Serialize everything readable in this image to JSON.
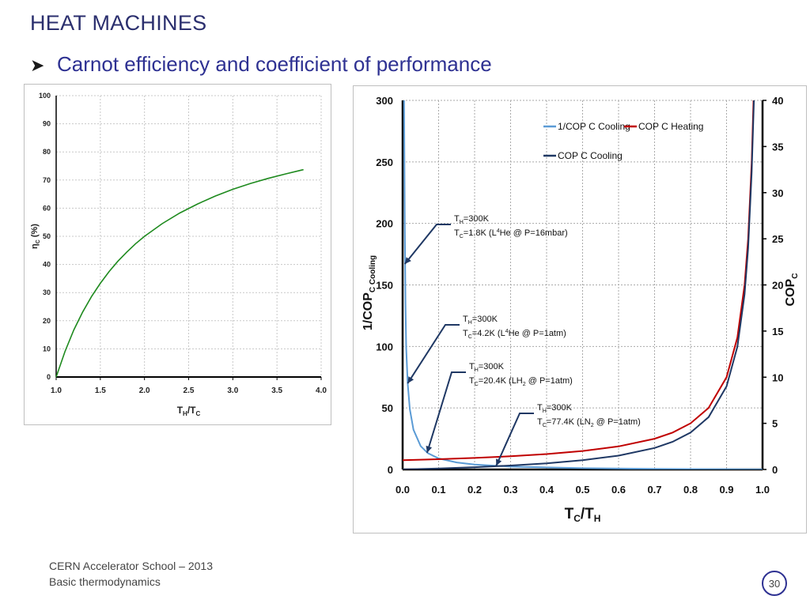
{
  "slide": {
    "title": "HEAT MACHINES",
    "bullet_icon": "arrowhead-bullet-icon",
    "subtitle": "Carnot efficiency and coefficient of performance"
  },
  "footer": {
    "line1": "CERN Accelerator School – 2013",
    "line2": "Basic thermodynamics",
    "page": "30"
  },
  "chart_data": [
    {
      "type": "line",
      "title": "",
      "xlabel_main": "T",
      "xlabel_sub1": "H",
      "xlabel_mid": "/T",
      "xlabel_sub2": "C",
      "ylabel_main": "η",
      "ylabel_sub": "C",
      "ylabel_unit": " (%)",
      "xlim": [
        1.0,
        4.0
      ],
      "ylim": [
        0,
        100
      ],
      "x_ticks": [
        "1.0",
        "1.5",
        "2.0",
        "2.5",
        "3.0",
        "3.5",
        "4.0"
      ],
      "y_ticks": [
        "0",
        "10",
        "20",
        "30",
        "40",
        "50",
        "60",
        "70",
        "80",
        "90",
        "100"
      ],
      "grid": true,
      "series": [
        {
          "name": "",
          "color": "#1e8a1e",
          "x": [
            1.0,
            1.1,
            1.2,
            1.3,
            1.4,
            1.5,
            1.6,
            1.7,
            1.8,
            1.9,
            2.0,
            2.2,
            2.4,
            2.6,
            2.8,
            3.0,
            3.2,
            3.4,
            3.6,
            3.8
          ],
          "y": [
            0,
            9.1,
            16.7,
            23.1,
            28.6,
            33.3,
            37.5,
            41.2,
            44.4,
            47.4,
            50.0,
            54.5,
            58.3,
            61.5,
            64.3,
            66.7,
            68.8,
            70.6,
            72.2,
            73.7
          ]
        }
      ]
    },
    {
      "type": "line",
      "title": "",
      "xlabel_main": "T",
      "xlabel_sub1": "C",
      "xlabel_mid": "/T",
      "xlabel_sub2": "H",
      "ylabel_left_main": "1/COP",
      "ylabel_left_sub": "C Cooling",
      "ylabel_right_main": "COP",
      "ylabel_right_sub": "C",
      "xlim": [
        0.0,
        1.0
      ],
      "ylim_left": [
        0,
        300
      ],
      "ylim_right": [
        0,
        40
      ],
      "x_ticks": [
        "0.0",
        "0.1",
        "0.2",
        "0.3",
        "0.4",
        "0.5",
        "0.6",
        "0.7",
        "0.8",
        "0.9",
        "1.0"
      ],
      "y_ticks_left": [
        "0",
        "50",
        "100",
        "150",
        "200",
        "250",
        "300"
      ],
      "y_ticks_right": [
        "0",
        "5",
        "10",
        "15",
        "20",
        "25",
        "30",
        "35",
        "40"
      ],
      "grid": true,
      "legend_position": "top-right",
      "series": [
        {
          "name": "1/COP C Cooling",
          "axis": "left",
          "color": "#5b9bd5",
          "x": [
            0.004,
            0.006,
            0.008,
            0.01,
            0.014,
            0.02,
            0.03,
            0.05,
            0.07,
            0.1,
            0.15,
            0.2,
            0.3,
            0.5,
            0.7,
            0.9,
            1.0
          ],
          "y": [
            300,
            200,
            135,
            99,
            70,
            49,
            32.3,
            19,
            13.3,
            9,
            5.7,
            4,
            2.3,
            1,
            0.43,
            0.11,
            0
          ]
        },
        {
          "name": "COP C Heating",
          "axis": "right",
          "color": "#c00000",
          "x": [
            0.0,
            0.1,
            0.2,
            0.3,
            0.4,
            0.5,
            0.6,
            0.7,
            0.75,
            0.8,
            0.85,
            0.9,
            0.93,
            0.95,
            0.96,
            0.97,
            0.975
          ],
          "y": [
            1,
            1.11,
            1.25,
            1.43,
            1.67,
            2,
            2.5,
            3.33,
            4,
            5,
            6.67,
            10,
            14.3,
            20,
            25,
            33.3,
            40
          ]
        },
        {
          "name": "COP C Cooling",
          "axis": "right",
          "color": "#1f3864",
          "x": [
            0.0,
            0.1,
            0.2,
            0.3,
            0.4,
            0.5,
            0.6,
            0.7,
            0.75,
            0.8,
            0.85,
            0.9,
            0.93,
            0.95,
            0.96,
            0.97,
            0.976
          ],
          "y": [
            0,
            0.11,
            0.25,
            0.43,
            0.67,
            1,
            1.5,
            2.33,
            3,
            4,
            5.67,
            9,
            13.3,
            19,
            24,
            32.3,
            40
          ]
        }
      ],
      "annotations": [
        {
          "th": "T",
          "th_sub": "H",
          "th_val": "=300K",
          "tc": "T",
          "tc_sub": "C",
          "tc_val": "=1.8K",
          "fluid_pre": "(L",
          "fluid_sup": "4",
          "fluid_sub": "",
          "fluid_post": "He @ P=16mbar)",
          "target_x": 0.006,
          "target_y": 167
        },
        {
          "th": "T",
          "th_sub": "H",
          "th_val": "=300K",
          "tc": "T",
          "tc_sub": "C",
          "tc_val": "=4.2K",
          "fluid_pre": "(L",
          "fluid_sup": "4",
          "fluid_sub": "",
          "fluid_post": "He @ P=1atm)",
          "target_x": 0.014,
          "target_y": 70
        },
        {
          "th": "T",
          "th_sub": "H",
          "th_val": "=300K",
          "tc": "T",
          "tc_sub": "C",
          "tc_val": "=20.4K",
          "fluid_pre": "(LH",
          "fluid_sup": "",
          "fluid_sub": "2",
          "fluid_post": " @ P=1atm)",
          "target_x": 0.068,
          "target_y": 13.6
        },
        {
          "th": "T",
          "th_sub": "H",
          "th_val": "=300K",
          "tc": "T",
          "tc_sub": "C",
          "tc_val": "=77.4K",
          "fluid_pre": "(LN",
          "fluid_sup": "",
          "fluid_sub": "2",
          "fluid_post": " @ P=1atm)",
          "target_x": 0.26,
          "target_y": 3
        }
      ]
    }
  ]
}
